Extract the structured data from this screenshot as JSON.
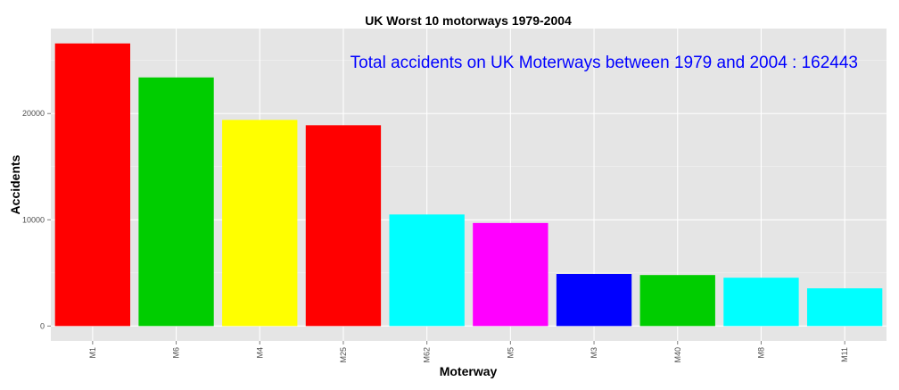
{
  "chart_data": {
    "type": "bar",
    "title": "UK Worst 10 motorways 1979-2004",
    "xlabel": "Moterway",
    "ylabel": "Accidents",
    "annotation": "Total accidents on UK Moterways between 1979 and 2004 : 162443",
    "categories": [
      "M1",
      "M6",
      "M4",
      "M25",
      "M62",
      "M5",
      "M3",
      "M40",
      "M8",
      "M11"
    ],
    "values": [
      26600,
      23400,
      19400,
      18900,
      10500,
      9700,
      4900,
      4800,
      4550,
      3550
    ],
    "colors": [
      "#ff0000",
      "#00cd00",
      "#ffff00",
      "#ff0000",
      "#00ffff",
      "#ff00ff",
      "#0000ff",
      "#00cd00",
      "#00ffff",
      "#00ffff"
    ],
    "ylim": [
      -1400,
      28000
    ],
    "yticks": [
      0,
      10000,
      20000
    ],
    "ytick_labels": [
      "0",
      "10000",
      "20000"
    ],
    "grid": true,
    "panel_background": "#e5e5e5",
    "annotation_color": "#0000ff",
    "legend": "none"
  }
}
